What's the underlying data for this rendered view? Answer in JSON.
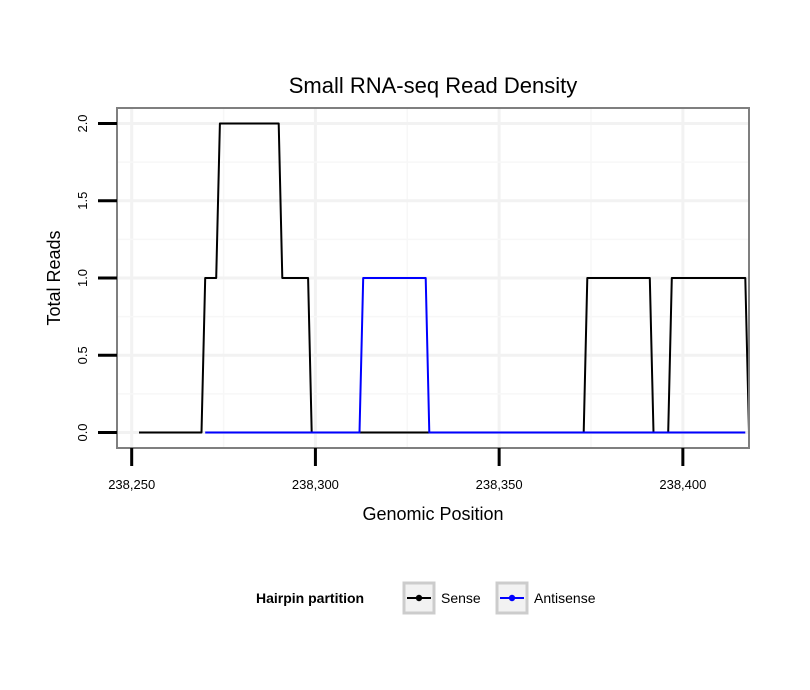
{
  "chart_data": {
    "type": "line",
    "title": "Small RNA-seq Read Density",
    "xlabel": "Genomic Position",
    "ylabel": "Total Reads",
    "xlim": [
      238246,
      238418
    ],
    "ylim": [
      -0.1,
      2.1
    ],
    "x_ticks": [
      238250,
      238300,
      238350,
      238400
    ],
    "x_tick_labels": [
      "238,250",
      "238,300",
      "238,350",
      "238,400"
    ],
    "y_ticks": [
      0,
      0.5,
      1,
      1.5,
      2
    ],
    "y_tick_labels": [
      "0.0",
      "0.5",
      "1.0",
      "1.5",
      "2.0"
    ],
    "grid": true,
    "legend": {
      "title": "Hairpin partition",
      "position": "bottom",
      "entries": [
        "Sense",
        "Antisense"
      ]
    },
    "series": [
      {
        "name": "Sense",
        "color": "#000000",
        "points": [
          [
            238252,
            0
          ],
          [
            238269,
            0
          ],
          [
            238270,
            1
          ],
          [
            238273,
            1
          ],
          [
            238274,
            2
          ],
          [
            238290,
            2
          ],
          [
            238291,
            1
          ],
          [
            238298,
            1
          ],
          [
            238299,
            0
          ],
          [
            238373,
            0
          ],
          [
            238374,
            1
          ],
          [
            238391,
            1
          ],
          [
            238392,
            0
          ],
          [
            238396,
            0
          ],
          [
            238397,
            1
          ],
          [
            238417,
            1
          ],
          [
            238418,
            0
          ]
        ]
      },
      {
        "name": "Antisense",
        "color": "#0000ff",
        "points": [
          [
            238270,
            0
          ],
          [
            238312,
            0
          ],
          [
            238313,
            1
          ],
          [
            238330,
            1
          ],
          [
            238331,
            0
          ],
          [
            238391,
            0
          ],
          [
            238392,
            0
          ],
          [
            238396,
            0
          ],
          [
            238417,
            0
          ]
        ]
      }
    ]
  }
}
